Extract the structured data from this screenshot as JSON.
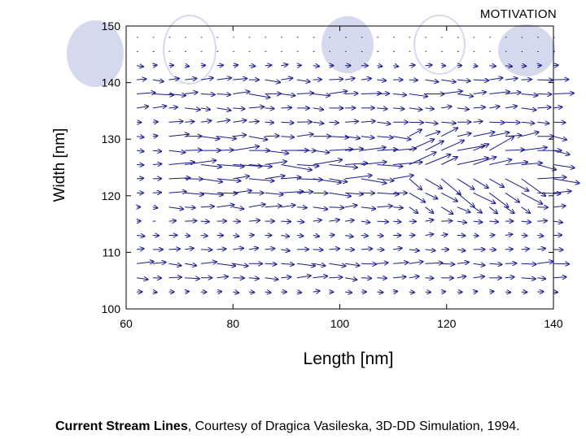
{
  "header": {
    "title": "MOTIVATION"
  },
  "caption": {
    "bold": "Current Stream Lines",
    "rest": ", Courtesy of Dragica Vasileska, 3D-DD Simulation, 1994."
  },
  "colors": {
    "arrow": "#1a1a8c",
    "axis": "#000000",
    "decor": "#d6d8ee"
  },
  "chart_data": {
    "type": "quiver",
    "title": "",
    "xlabel": "Length [nm]",
    "ylabel": "Width [nm]",
    "xlim": [
      60,
      140
    ],
    "ylim": [
      100,
      150
    ],
    "xticks": [
      60,
      80,
      100,
      120,
      140
    ],
    "yticks": [
      100,
      110,
      120,
      130,
      140,
      150
    ],
    "grid": false,
    "description": "Vector field of current flow, predominantly in +x direction, strongest in band 118-134 nm",
    "field": {
      "x_start": 62,
      "x_step": 3,
      "x_count": 27,
      "y_start": 103,
      "y_step": 2.5,
      "y_count": 19,
      "main_band": {
        "center": 125,
        "half_width": 8,
        "max_magnitude": 3.6
      },
      "secondary_band": {
        "center": 138.5,
        "half_width": 3,
        "max_magnitude": 2.0
      },
      "lower_band": {
        "center": 107.5,
        "half_width": 3,
        "max_magnitude": 2.0
      },
      "background_magnitude": 0.7,
      "edge_magnitude": 0.2
    }
  }
}
